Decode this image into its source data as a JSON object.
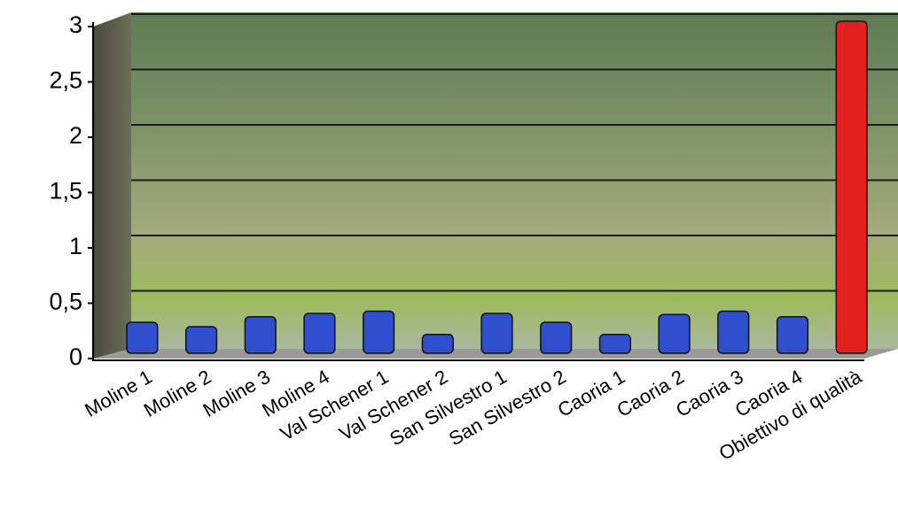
{
  "chart_data": {
    "type": "bar",
    "categories": [
      "Moline 1",
      "Moline 2",
      "Moline 3",
      "Moline 4",
      "Val Schener 1",
      "Val Schener 2",
      "San Silvestro 1",
      "San Silvestro 2",
      "Caoria 1",
      "Caoria 2",
      "Caoria 3",
      "Caoria 4",
      "Obiettivo di qualità"
    ],
    "values": [
      0.28,
      0.24,
      0.33,
      0.36,
      0.38,
      0.17,
      0.36,
      0.28,
      0.17,
      0.35,
      0.38,
      0.33,
      3
    ],
    "colors": [
      "#2f4fcf",
      "#2f4fcf",
      "#2f4fcf",
      "#2f4fcf",
      "#2f4fcf",
      "#2f4fcf",
      "#2f4fcf",
      "#2f4fcf",
      "#2f4fcf",
      "#2f4fcf",
      "#2f4fcf",
      "#2f4fcf",
      "#e3211f"
    ],
    "ylim": [
      0,
      3
    ],
    "yticks": [
      0,
      {
        "value": 0.5,
        "label": "0,5"
      },
      1,
      {
        "value": 1.5,
        "label": "1,5"
      },
      2,
      {
        "value": 2.5,
        "label": "2,5"
      },
      3
    ],
    "grid": true
  }
}
